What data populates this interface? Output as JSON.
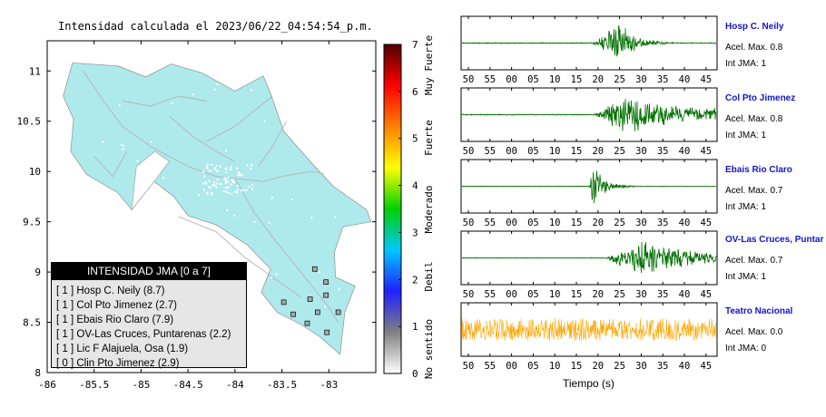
{
  "page": {
    "title": "Intensidad calculada el 2023/06/22_04:54:54_p.m."
  },
  "chart_data": [
    {
      "type": "map",
      "xlim": [
        -86,
        -82.5
      ],
      "ylim": [
        8,
        11.3
      ],
      "x_ticks": [
        "-86",
        "-85.5",
        "-85",
        "-84.5",
        "-84",
        "-83.5",
        "-83"
      ],
      "y_ticks": [
        "8",
        "8.5",
        "9",
        "9.5",
        "10",
        "10.5",
        "11"
      ],
      "colorbar": {
        "min": 0,
        "max": 7,
        "ticks": [
          "0",
          "1",
          "2",
          "3",
          "4",
          "5",
          "6",
          "7"
        ],
        "category_labels": [
          "No sentido",
          "Debil",
          "Moderado",
          "Fuerte",
          "Muy Fuerte"
        ],
        "colors": [
          "#ffffff",
          "#808080",
          "#2020ff",
          "#00c8ff",
          "#00d000",
          "#ffff00",
          "#ff8000",
          "#ff0000",
          "#500000"
        ]
      },
      "fill_color": "#aee9ec",
      "legend": {
        "title": "INTENSIDAD JMA [0 a 7]",
        "entries": [
          "[ 1 ]  Hosp C. Neily (8.7)",
          "[ 1 ]  Col Pto Jimenez (2.7)",
          "[ 1 ]  Ebais Rio Claro (7.9)",
          "[ 1 ]  OV-Las Cruces, Puntarenas (2.2)",
          "[ 1 ]  Lic F Alajuela, Osa (1.9)",
          "[ 0 ]  Clin Pto Jimenez (2.9)"
        ]
      }
    },
    {
      "type": "line",
      "xlabel": "Tiempo (s)",
      "x_ticks": [
        "50",
        "55",
        "00",
        "05",
        "10",
        "15",
        "20",
        "25",
        "30",
        "35",
        "40",
        "45"
      ],
      "series": [
        {
          "name": "Hosp C. Neily",
          "accel_label": "Acel. Max. 0.8",
          "jma_label": "Int JMA: 1",
          "color": "#007000",
          "onset_s": 28.5,
          "peak_s": 35.0,
          "amp": 0.9,
          "noise": 0.02,
          "decay": 0.25
        },
        {
          "name": "Col Pto Jimenez",
          "accel_label": "Acel. Max. 0.8",
          "jma_label": "Int JMA: 1",
          "color": "#007000",
          "onset_s": 28.5,
          "peak_s": 36.0,
          "amp": 0.8,
          "noise": 0.02,
          "decay": 0.05
        },
        {
          "name": "Ebais Rio Claro",
          "accel_label": "Acel. Max. 0.7",
          "jma_label": "Int JMA: 1",
          "color": "#007000",
          "onset_s": 28.0,
          "peak_s": 28.7,
          "amp": 0.95,
          "noise": 0.01,
          "decay": 0.35
        },
        {
          "name": "OV-Las Cruces, Puntar",
          "accel_label": "Acel. Max. 0.7",
          "jma_label": "Int JMA: 1",
          "color": "#007000",
          "onset_s": 31.5,
          "peak_s": 40.0,
          "amp": 0.9,
          "noise": 0.01,
          "decay": 0.08
        },
        {
          "name": "Teatro Nacional",
          "accel_label": "Acel. Max. 0.0",
          "jma_label": "Int JMA: 0",
          "color": "#ffa500",
          "onset_s": 0,
          "peak_s": 0,
          "amp": 0,
          "noise": 0.45,
          "decay": 0
        }
      ]
    }
  ]
}
